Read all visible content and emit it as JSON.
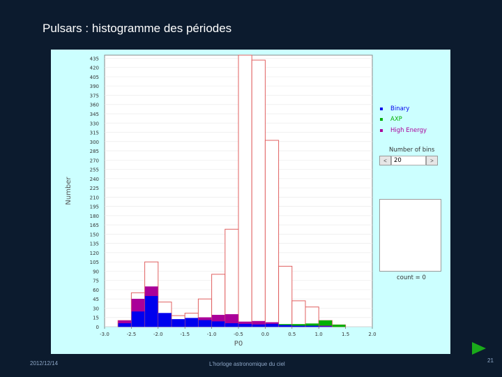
{
  "slide": {
    "title": "Pulsars : histogramme des périodes",
    "date": "2012/12/14",
    "footer": "L'horloge astronomique du ciel",
    "page_number": "21"
  },
  "colors": {
    "total": "#e06060",
    "binary": "#0000ee",
    "axp": "#00b000",
    "high_energy": "#aa0099",
    "panel_bg": "#ccffff"
  },
  "controls": {
    "bins_label": "Number of bins",
    "bins_value": "20",
    "dec_label": "<",
    "inc_label": ">",
    "count_label": "count = 0"
  },
  "chart_data": {
    "type": "bar",
    "title": "",
    "xlabel": "P0",
    "ylabel": "Number",
    "xlim": [
      -3.0,
      2.0
    ],
    "ylim": [
      0,
      440
    ],
    "x_ticks": [
      "-3.0",
      "-2.5",
      "-2.0",
      "-1.5",
      "-1.0",
      "-0.5",
      "0.0",
      "0.5",
      "1.0",
      "1.5",
      "2.0"
    ],
    "y_ticks": [
      "0",
      "15",
      "30",
      "45",
      "60",
      "75",
      "90",
      "105",
      "120",
      "135",
      "150",
      "165",
      "180",
      "195",
      "210",
      "225",
      "240",
      "255",
      "270",
      "285",
      "300",
      "315",
      "330",
      "345",
      "360",
      "375",
      "390",
      "405",
      "420",
      "435"
    ],
    "legend": [
      "Binary",
      "AXP",
      "High Energy"
    ],
    "bin_edges": [
      -3.0,
      -2.75,
      -2.5,
      -2.25,
      -2.0,
      -1.75,
      -1.5,
      -1.25,
      -1.0,
      -0.75,
      -0.5,
      -0.25,
      0.0,
      0.25,
      0.5,
      0.75,
      1.0,
      1.25,
      1.5,
      1.75,
      2.0
    ],
    "series": [
      {
        "name": "Total",
        "values": [
          0,
          10,
          55,
          105,
          40,
          18,
          22,
          45,
          85,
          158,
          440,
          432,
          302,
          98,
          42,
          32,
          10,
          3,
          0,
          0
        ]
      },
      {
        "name": "Binary",
        "values": [
          0,
          6,
          25,
          50,
          22,
          12,
          14,
          11,
          9,
          6,
          5,
          4,
          5,
          3,
          2,
          2,
          1,
          0,
          0,
          0
        ]
      },
      {
        "name": "AXP",
        "values": [
          0,
          0,
          0,
          0,
          0,
          0,
          0,
          0,
          0,
          0,
          0,
          0,
          0,
          1,
          2,
          3,
          8,
          3,
          0,
          0
        ]
      },
      {
        "name": "High Energy",
        "values": [
          0,
          4,
          20,
          15,
          0,
          0,
          0,
          4,
          10,
          14,
          3,
          5,
          2,
          0,
          0,
          0,
          1,
          0,
          0,
          0
        ]
      }
    ]
  }
}
